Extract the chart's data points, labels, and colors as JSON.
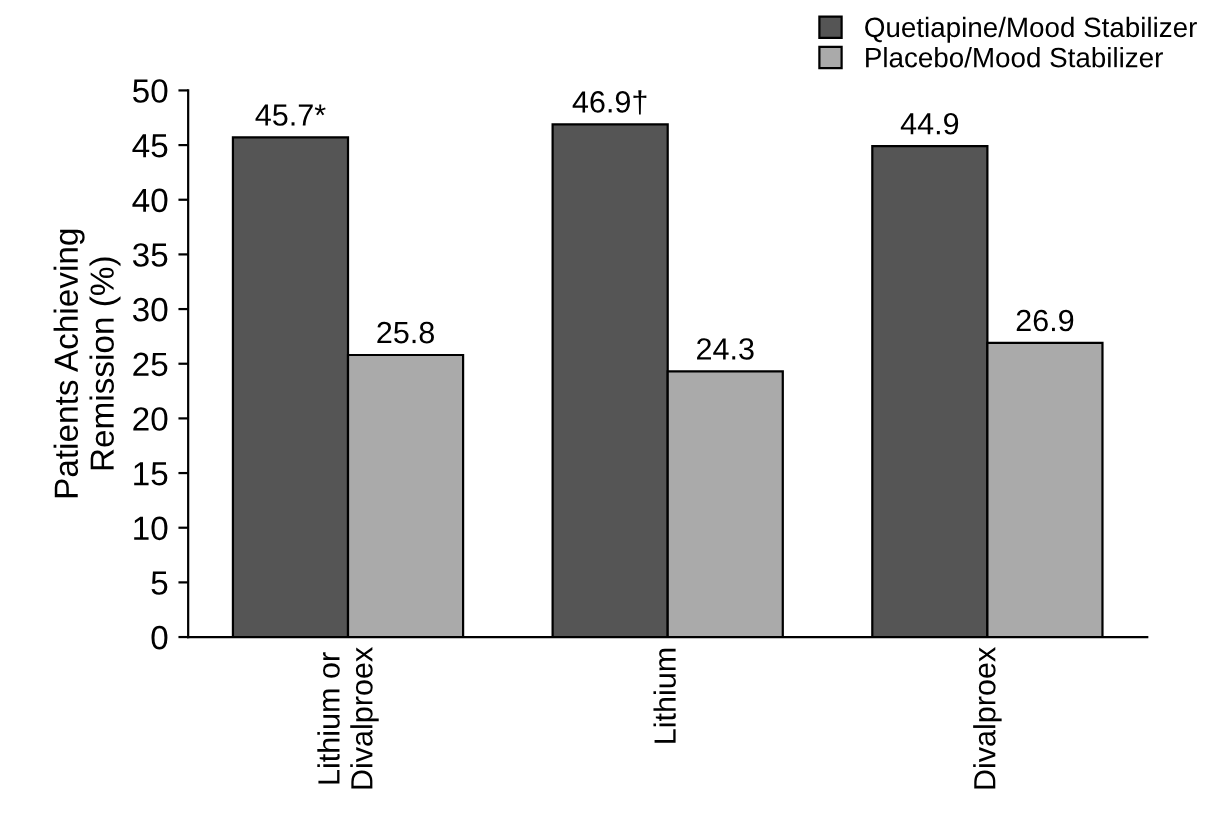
{
  "chart_data": {
    "type": "bar",
    "ylabel": "Patients Achieving\nRemission (%)",
    "categories": [
      "Lithium or\nDivalproex",
      "Lithium",
      "Divalproex"
    ],
    "series": [
      {
        "name": "Quetiapine/Mood Stabilizer",
        "color": "#555555",
        "values": [
          45.7,
          46.9,
          44.9
        ],
        "value_labels": [
          "45.7*",
          "46.9†",
          "44.9"
        ]
      },
      {
        "name": "Placebo/Mood Stabilizer",
        "color": "#aaaaaa",
        "values": [
          25.8,
          24.3,
          26.9
        ],
        "value_labels": [
          "25.8",
          "24.3",
          "26.9"
        ]
      }
    ],
    "ylim": [
      0,
      50
    ],
    "yticks": [
      0,
      5,
      10,
      15,
      20,
      25,
      30,
      35,
      40,
      45,
      50
    ],
    "grid": false,
    "legend": "top right"
  }
}
